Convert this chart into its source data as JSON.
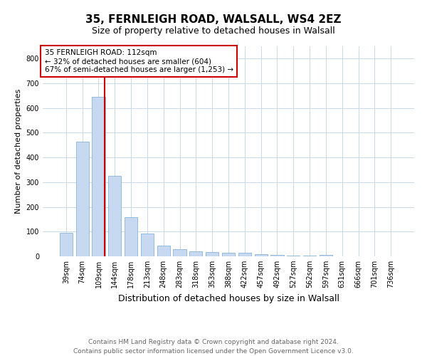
{
  "title1": "35, FERNLEIGH ROAD, WALSALL, WS4 2EZ",
  "title2": "Size of property relative to detached houses in Walsall",
  "xlabel": "Distribution of detached houses by size in Walsall",
  "ylabel": "Number of detached properties",
  "categories": [
    "39sqm",
    "74sqm",
    "109sqm",
    "144sqm",
    "178sqm",
    "213sqm",
    "248sqm",
    "283sqm",
    "318sqm",
    "353sqm",
    "388sqm",
    "422sqm",
    "457sqm",
    "492sqm",
    "527sqm",
    "562sqm",
    "597sqm",
    "631sqm",
    "666sqm",
    "701sqm",
    "736sqm"
  ],
  "values": [
    95,
    465,
    645,
    325,
    158,
    93,
    42,
    28,
    20,
    17,
    15,
    13,
    8,
    5,
    2,
    2,
    7,
    1,
    1,
    1,
    1
  ],
  "bar_color": "#c6d9f0",
  "bar_edge_color": "#8ab4d8",
  "highlight_bar_index": 2,
  "red_line_color": "#cc0000",
  "annotation_text": "35 FERNLEIGH ROAD: 112sqm\n← 32% of detached houses are smaller (604)\n67% of semi-detached houses are larger (1,253) →",
  "annotation_box_color": "#ffffff",
  "annotation_box_edge": "#cc0000",
  "ylim": [
    0,
    850
  ],
  "yticks": [
    0,
    100,
    200,
    300,
    400,
    500,
    600,
    700,
    800
  ],
  "footer": "Contains HM Land Registry data © Crown copyright and database right 2024.\nContains public sector information licensed under the Open Government Licence v3.0.",
  "bg_color": "#ffffff",
  "grid_color": "#c8d8e8",
  "title1_fontsize": 11,
  "title2_fontsize": 9,
  "xlabel_fontsize": 9,
  "ylabel_fontsize": 8,
  "tick_fontsize": 7,
  "footer_fontsize": 6.5,
  "annotation_fontsize": 7.5
}
